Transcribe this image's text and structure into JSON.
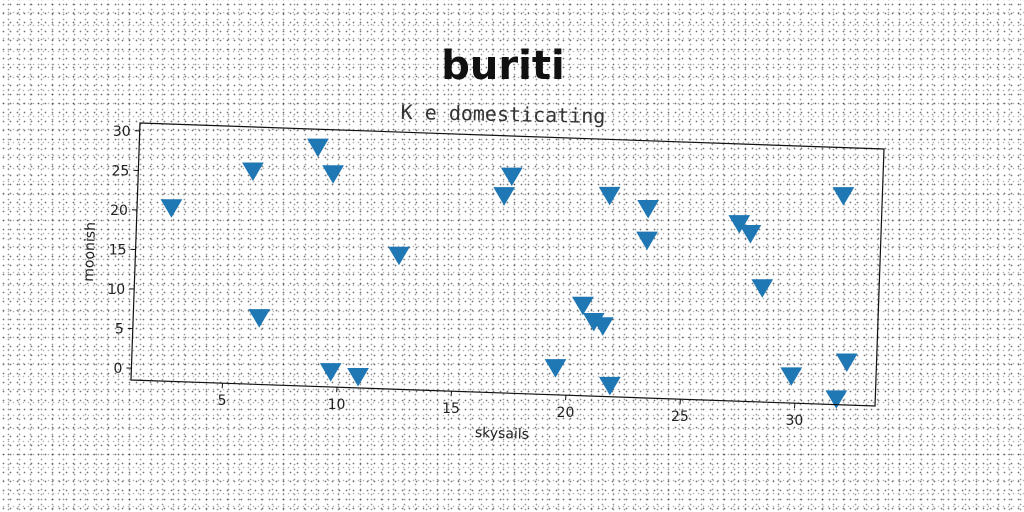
{
  "header": {
    "brand": "buriti"
  },
  "chart_data": {
    "type": "scatter",
    "title": "K e domesticating",
    "xlabel": "skysails",
    "ylabel": "moonish",
    "xlim": [
      1,
      33.5
    ],
    "ylim": [
      -1.5,
      31
    ],
    "xticks": [
      5,
      10,
      15,
      20,
      25,
      30
    ],
    "yticks": [
      0,
      5,
      10,
      15,
      20,
      25,
      30
    ],
    "marker": "triangle-down",
    "color": "#1f77b4",
    "grid": false,
    "points": [
      {
        "x": 2.5,
        "y": 20.5
      },
      {
        "x": 6.0,
        "y": 25.5
      },
      {
        "x": 6.5,
        "y": 7.0
      },
      {
        "x": 8.8,
        "y": 28.8
      },
      {
        "x": 9.5,
        "y": 25.5
      },
      {
        "x": 9.7,
        "y": 0.5
      },
      {
        "x": 10.9,
        "y": 0.0
      },
      {
        "x": 12.5,
        "y": 15.5
      },
      {
        "x": 17.0,
        "y": 23.5
      },
      {
        "x": 17.3,
        "y": 26.0
      },
      {
        "x": 19.5,
        "y": 2.0
      },
      {
        "x": 20.6,
        "y": 10.0
      },
      {
        "x": 21.1,
        "y": 8.0
      },
      {
        "x": 21.5,
        "y": 7.5
      },
      {
        "x": 21.6,
        "y": 24.0
      },
      {
        "x": 21.9,
        "y": 0.0
      },
      {
        "x": 23.3,
        "y": 22.5
      },
      {
        "x": 23.3,
        "y": 18.5
      },
      {
        "x": 27.3,
        "y": 21.0
      },
      {
        "x": 27.8,
        "y": 19.8
      },
      {
        "x": 28.4,
        "y": 13.0
      },
      {
        "x": 29.8,
        "y": 2.0
      },
      {
        "x": 31.8,
        "y": 25.0
      },
      {
        "x": 31.8,
        "y": -0.7
      },
      {
        "x": 32.2,
        "y": 4.0
      }
    ]
  }
}
